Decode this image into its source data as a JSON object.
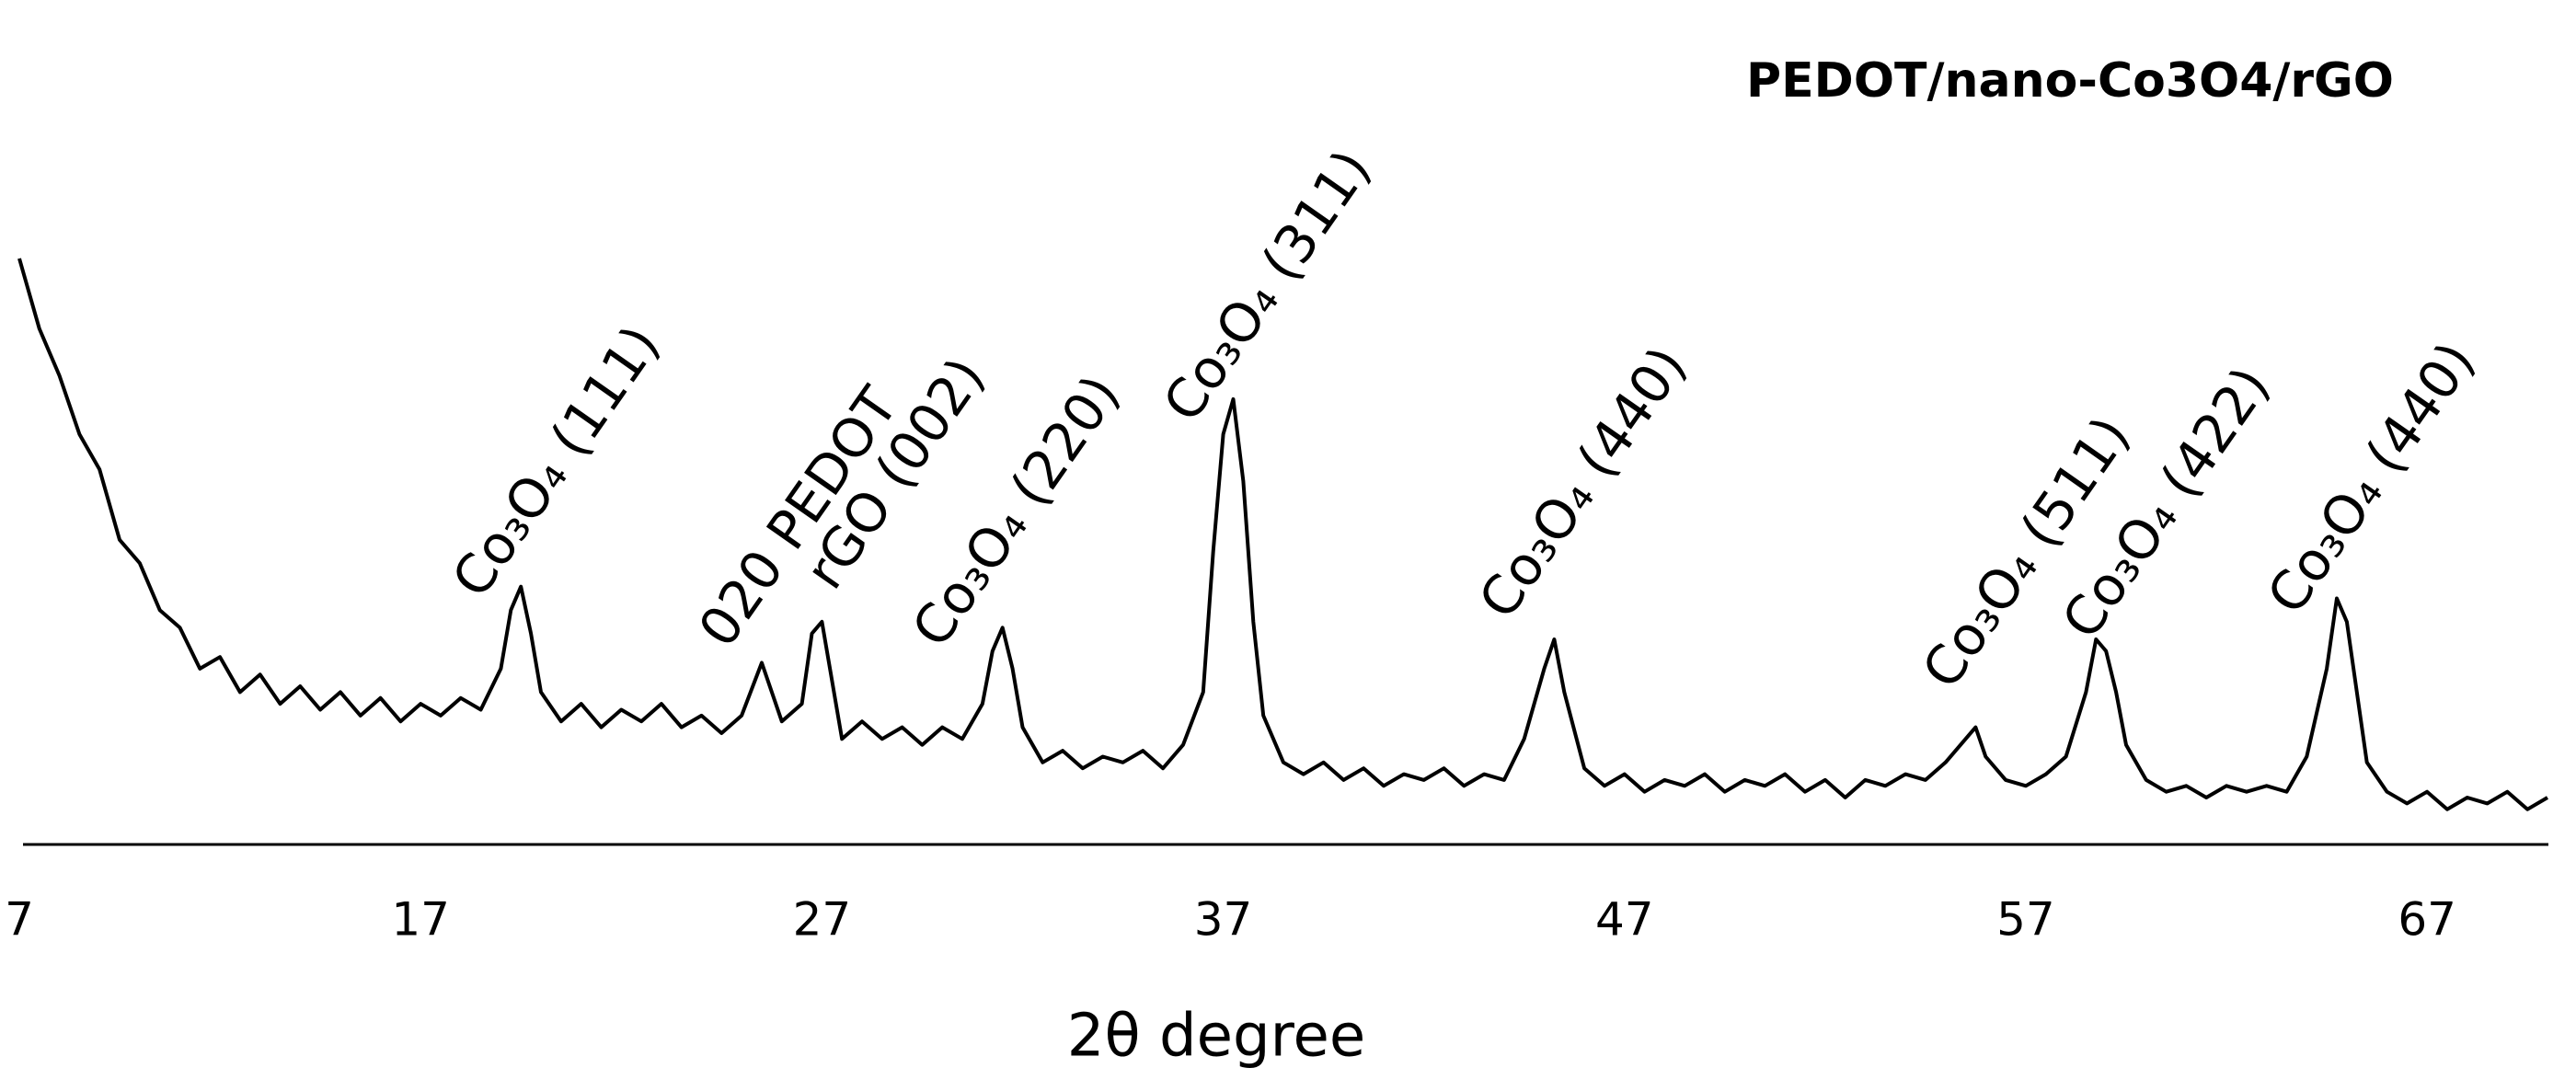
{
  "chart_data": {
    "type": "line",
    "title": "PEDOT/nano-Co3O4/rGO",
    "x_label": "2θ degree",
    "xlim": [
      7,
      70
    ],
    "xticks": [
      7,
      17,
      27,
      37,
      47,
      57,
      67
    ],
    "ylim": [
      0,
      100
    ],
    "annotations": [
      "Co₃O₄ (111)",
      "020 PEDOT",
      "rGO (002)",
      "Co₃O₄ (220)",
      "Co₃O₄ (311)",
      "Co₃O₄ (440)",
      "Co₃O₄ (511)",
      "Co₃O₄ (422)",
      "Co₃O₄ (440)"
    ],
    "x": [
      7,
      7.5,
      8,
      8.5,
      9,
      9.5,
      10,
      10.5,
      11,
      11.5,
      12,
      12.5,
      13,
      13.5,
      14,
      14.5,
      15,
      15.5,
      16,
      16.5,
      17,
      17.5,
      18,
      18.5,
      19,
      19.25,
      19.5,
      19.75,
      20,
      20.5,
      21,
      21.5,
      22,
      22.5,
      23,
      23.5,
      24,
      24.5,
      25,
      25.5,
      26,
      26.5,
      26.75,
      27,
      27.25,
      27.5,
      28,
      28.5,
      29,
      29.5,
      30,
      30.5,
      31,
      31.25,
      31.5,
      31.75,
      32,
      32.5,
      33,
      33.5,
      34,
      34.5,
      35,
      35.5,
      36,
      36.5,
      36.75,
      37,
      37.25,
      37.5,
      37.75,
      38,
      38.5,
      39,
      39.5,
      40,
      40.5,
      41,
      41.5,
      42,
      42.5,
      43,
      43.5,
      44,
      44.5,
      45,
      45.25,
      45.5,
      46,
      46.5,
      47,
      47.5,
      48,
      48.5,
      49,
      49.5,
      50,
      50.5,
      51,
      51.5,
      52,
      52.5,
      53,
      53.5,
      54,
      54.5,
      55,
      55.5,
      55.75,
      56,
      56.5,
      57,
      57.5,
      58,
      58.5,
      58.75,
      59,
      59.25,
      59.5,
      60,
      60.5,
      61,
      61.5,
      62,
      62.5,
      63,
      63.5,
      64,
      64.5,
      64.75,
      65,
      65.25,
      65.5,
      66,
      66.5,
      67,
      67.5,
      68,
      68.5,
      69,
      69.5,
      70
    ],
    "series": [
      {
        "color": "#000000",
        "values": [
          100,
          88,
          80,
          70,
          64,
          52,
          48,
          40,
          37,
          30,
          32,
          26,
          29,
          24,
          27,
          23,
          26,
          22,
          25,
          21,
          24,
          22,
          25,
          23,
          30,
          40,
          44,
          36,
          26,
          21,
          24,
          20,
          23,
          21,
          24,
          20,
          22,
          19,
          22,
          31,
          21,
          24,
          36,
          38,
          28,
          18,
          21,
          18,
          20,
          17,
          20,
          18,
          24,
          33,
          37,
          30,
          20,
          14,
          16,
          13,
          15,
          14,
          16,
          13,
          17,
          26,
          50,
          70,
          76,
          62,
          38,
          22,
          14,
          12,
          14,
          11,
          13,
          10,
          12,
          11,
          13,
          10,
          12,
          11,
          18,
          30,
          35,
          26,
          13,
          10,
          12,
          9,
          11,
          10,
          12,
          9,
          11,
          10,
          12,
          9,
          11,
          8,
          11,
          10,
          12,
          11,
          14,
          18,
          20,
          15,
          11,
          10,
          12,
          15,
          26,
          35,
          33,
          26,
          17,
          11,
          9,
          10,
          8,
          10,
          9,
          10,
          9,
          15,
          30,
          42,
          38,
          26,
          14,
          9,
          7,
          9,
          6,
          8,
          7,
          9,
          6,
          8
        ]
      }
    ]
  }
}
